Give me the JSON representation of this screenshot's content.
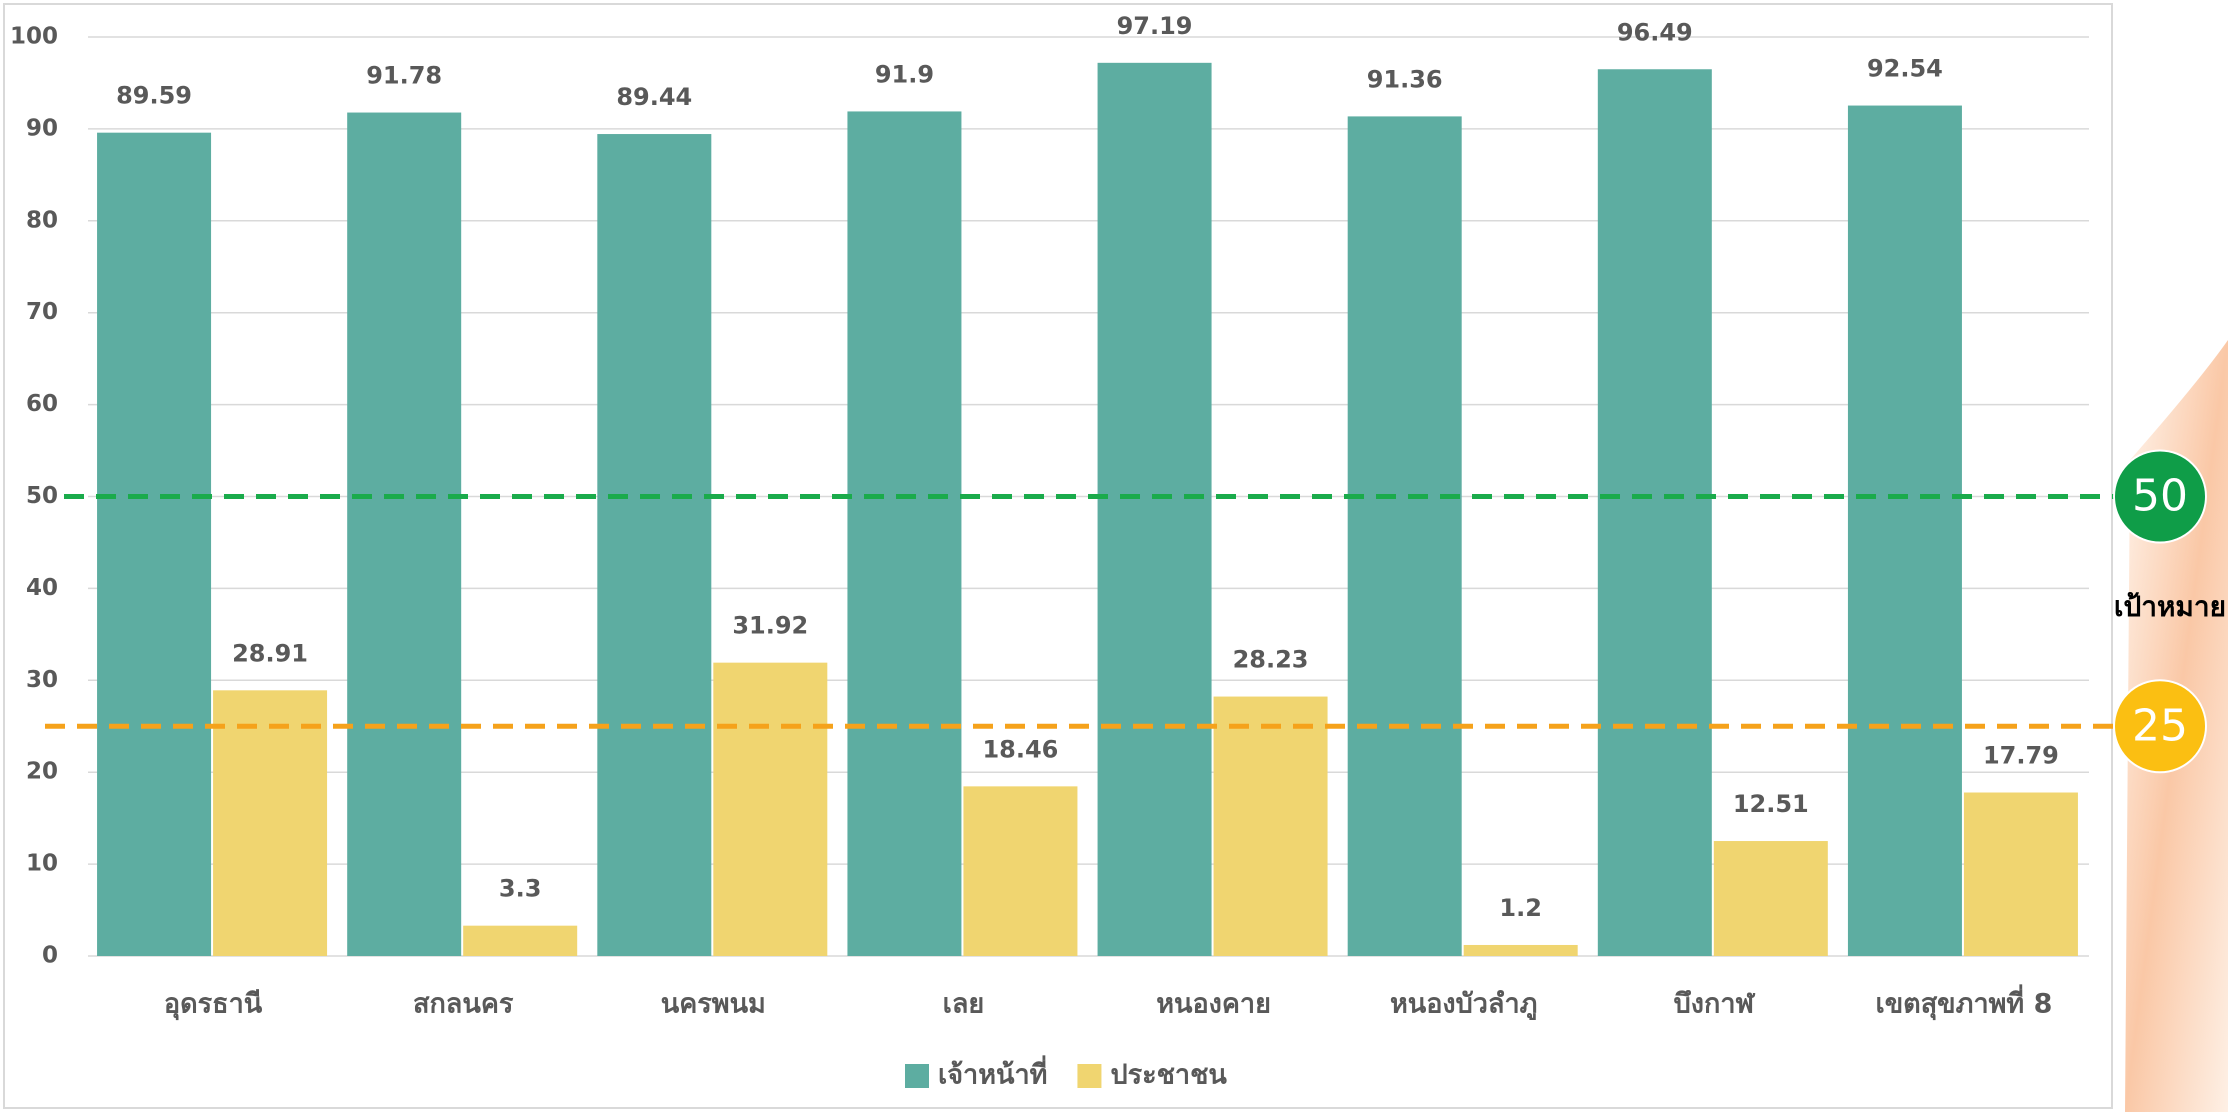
{
  "chart_data": {
    "type": "bar",
    "categories": [
      "อุดรธานี",
      "สกลนคร",
      "นครพนม",
      "เลย",
      "หนองคาย",
      "หนองบัวลำภู",
      "บึงกาฬ",
      "เขตสุขภาพที่ 8"
    ],
    "series": [
      {
        "name": "เจ้าหน้าที่",
        "color": "#5dada1",
        "values": [
          89.59,
          91.78,
          89.44,
          91.9,
          97.19,
          91.36,
          96.49,
          92.54
        ]
      },
      {
        "name": "ประชาชน",
        "color": "#f0d570",
        "values": [
          28.91,
          3.3,
          31.92,
          18.46,
          28.23,
          1.2,
          12.51,
          17.79
        ]
      }
    ],
    "ylim": [
      0,
      100
    ],
    "yticks": [
      0,
      10,
      20,
      30,
      40,
      50,
      60,
      70,
      80,
      90,
      100
    ],
    "grid": true,
    "targets": [
      {
        "value": 50,
        "color": "#1aab4b",
        "badge": "#0f9d48"
      },
      {
        "value": 25,
        "color": "#f5a21b",
        "badge": "#fbbf12"
      }
    ],
    "target_label": "เป้าหมาย",
    "legend": "bottom"
  }
}
